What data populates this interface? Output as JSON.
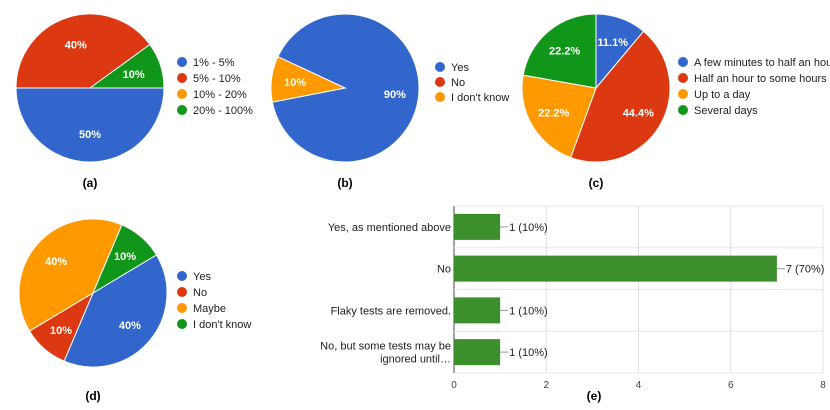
{
  "colors": {
    "blue": "#3366cc",
    "red": "#dc3912",
    "orange": "#ff9900",
    "green": "#109618",
    "bar": "#3c8f2c"
  },
  "chart_data": [
    {
      "id": "a",
      "type": "pie",
      "caption": "(a)",
      "slices": [
        {
          "label": "1% - 5%",
          "value": 50,
          "display": "50%",
          "color": "#3366cc"
        },
        {
          "label": "5% - 10%",
          "value": 40,
          "display": "40%",
          "color": "#dc3912"
        },
        {
          "label": "10% - 20%",
          "value": 0,
          "display": "",
          "color": "#ff9900"
        },
        {
          "label": "20% - 100%",
          "value": 10,
          "display": "10%",
          "color": "#109618"
        }
      ]
    },
    {
      "id": "b",
      "type": "pie",
      "caption": "(b)",
      "slices": [
        {
          "label": "Yes",
          "value": 90,
          "display": "90%",
          "color": "#3366cc"
        },
        {
          "label": "No",
          "value": 0,
          "display": "",
          "color": "#dc3912"
        },
        {
          "label": "I don't know",
          "value": 10,
          "display": "10%",
          "color": "#ff9900"
        }
      ]
    },
    {
      "id": "c",
      "type": "pie",
      "caption": "(c)",
      "slices": [
        {
          "label": "A few minutes to half an hour",
          "value": 11.1,
          "display": "11.1%",
          "color": "#3366cc"
        },
        {
          "label": "Half an hour to some hours",
          "value": 44.4,
          "display": "44.4%",
          "color": "#dc3912"
        },
        {
          "label": "Up to a day",
          "value": 22.2,
          "display": "22.2%",
          "color": "#ff9900"
        },
        {
          "label": "Several days",
          "value": 22.2,
          "display": "22.2%",
          "color": "#109618"
        }
      ]
    },
    {
      "id": "d",
      "type": "pie",
      "caption": "(d)",
      "slices": [
        {
          "label": "Yes",
          "value": 40,
          "display": "40%",
          "color": "#3366cc"
        },
        {
          "label": "No",
          "value": 10,
          "display": "10%",
          "color": "#dc3912"
        },
        {
          "label": "Maybe",
          "value": 40,
          "display": "40%",
          "color": "#ff9900"
        },
        {
          "label": "I don't know",
          "value": 10,
          "display": "10%",
          "color": "#109618"
        }
      ]
    },
    {
      "id": "e",
      "type": "bar",
      "orientation": "horizontal",
      "caption": "(e)",
      "categories": [
        [
          "Yes, as mentioned above"
        ],
        [
          "No"
        ],
        [
          "Flaky tests are removed."
        ],
        [
          "No, but some tests may be",
          "ignored until…"
        ]
      ],
      "values": [
        1,
        7,
        1,
        1
      ],
      "value_labels": [
        "1 (10%)",
        "7 (70%)",
        "1 (10%)",
        "1 (10%)"
      ],
      "xlim": [
        0,
        8
      ],
      "xticks": [
        "0",
        "2",
        "4",
        "6",
        "8"
      ],
      "grid": true
    }
  ]
}
